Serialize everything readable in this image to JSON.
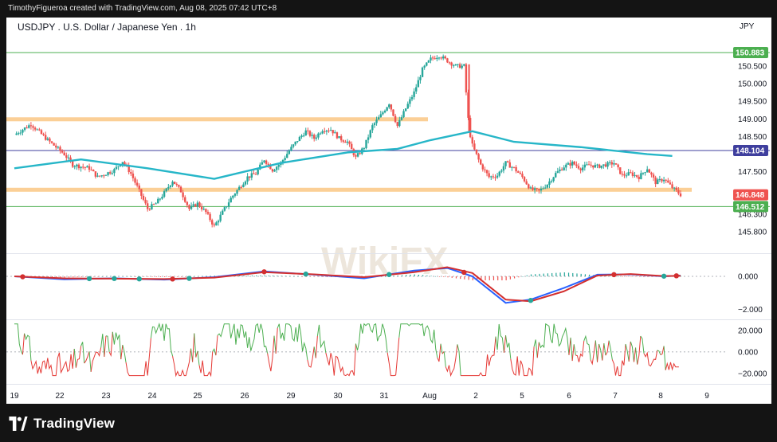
{
  "credit": "TimothyFigueroa created with TradingView.com, Aug 08, 2025 07:42 UTC+8",
  "footer": {
    "brand": "TradingView"
  },
  "watermark": "WikiFX",
  "colors": {
    "bull": "#26a69a",
    "bear": "#ef5350",
    "ma": "#26b6c8",
    "resistance_zone": "#fbcf96",
    "support_zone": "#fbcf96",
    "green_level": "#4caf50",
    "blue_level": "#3f3f9e",
    "macd_line": "#2962ff",
    "signal_line": "#d32f2f",
    "macd_up": "#26a69a",
    "macd_down": "#ef5350"
  },
  "icons": {
    "logo": "tradingview-logo-icon"
  },
  "chart_data": [
    {
      "type": "candlestick",
      "title": "USDJPY . U.S. Dollar / Japanese Yen . 1h",
      "currency": "JPY",
      "timeframe": "1h",
      "ylim": [
        145.55,
        151.2
      ],
      "y_ticks": [
        150.5,
        150.0,
        149.5,
        149.0,
        148.5,
        147.5,
        146.3,
        145.8
      ],
      "x_ticks": [
        "19",
        "22",
        "23",
        "24",
        "25",
        "26",
        "29",
        "30",
        "31",
        "Aug",
        "2",
        "5",
        "6",
        "7",
        "8",
        "9"
      ],
      "price_labels": [
        {
          "value": 150.883,
          "text": "150.883",
          "color": "#4caf50"
        },
        {
          "value": 148.104,
          "text": "148.104",
          "color": "#3f3f9e"
        },
        {
          "value": 146.848,
          "text": "146.848",
          "color": "#ef5350"
        },
        {
          "value": 146.512,
          "text": "146.512",
          "color": "#4caf50"
        }
      ],
      "levels": [
        {
          "kind": "line",
          "value": 150.883,
          "color": "#4caf50",
          "x_from": "19"
        },
        {
          "kind": "zone",
          "value": 148.99,
          "color": "#fbcf96",
          "x_from": "19",
          "x_to": "31"
        },
        {
          "kind": "line",
          "value": 148.104,
          "color": "#3f3f9e",
          "x_from": "19"
        },
        {
          "kind": "zone",
          "value": 146.99,
          "color": "#fbcf96",
          "x_from": "19"
        },
        {
          "kind": "line",
          "value": 146.512,
          "color": "#4caf50",
          "x_from": "19"
        }
      ],
      "close_path": [
        [
          0,
          148.55
        ],
        [
          2,
          148.85
        ],
        [
          4,
          148.4
        ],
        [
          6,
          148.0
        ],
        [
          7,
          147.7
        ],
        [
          9,
          147.6
        ],
        [
          10,
          147.35
        ],
        [
          12,
          147.55
        ],
        [
          13,
          147.8
        ],
        [
          14,
          147.45
        ],
        [
          15,
          146.95
        ],
        [
          16,
          146.45
        ],
        [
          17,
          146.6
        ],
        [
          18,
          146.9
        ],
        [
          19,
          147.25
        ],
        [
          20,
          146.95
        ],
        [
          21,
          146.45
        ],
        [
          22,
          146.6
        ],
        [
          23,
          146.35
        ],
        [
          24,
          145.95
        ],
        [
          25,
          146.35
        ],
        [
          26,
          146.75
        ],
        [
          27,
          147.05
        ],
        [
          28,
          147.35
        ],
        [
          29,
          147.45
        ],
        [
          30,
          147.85
        ],
        [
          31,
          147.55
        ],
        [
          32,
          147.75
        ],
        [
          33,
          148.1
        ],
        [
          34,
          148.4
        ],
        [
          35,
          148.65
        ],
        [
          36,
          148.45
        ],
        [
          37,
          148.7
        ],
        [
          38,
          148.7
        ],
        [
          39,
          148.45
        ],
        [
          40,
          148.35
        ],
        [
          41,
          147.9
        ],
        [
          42,
          148.2
        ],
        [
          43,
          148.8
        ],
        [
          44,
          149.1
        ],
        [
          45,
          149.45
        ],
        [
          46,
          148.8
        ],
        [
          47,
          149.3
        ],
        [
          48,
          149.75
        ],
        [
          49,
          150.4
        ],
        [
          50,
          150.7
        ],
        [
          51,
          150.8
        ],
        [
          52,
          150.65
        ],
        [
          53,
          150.5
        ],
        [
          54,
          150.5
        ],
        [
          54.6,
          148.7
        ],
        [
          55,
          148.25
        ],
        [
          56,
          147.7
        ],
        [
          57,
          147.35
        ],
        [
          58,
          147.4
        ],
        [
          59,
          147.75
        ],
        [
          60,
          147.6
        ],
        [
          61,
          147.35
        ],
        [
          62,
          147.0
        ],
        [
          63,
          146.95
        ],
        [
          64,
          147.15
        ],
        [
          65,
          147.45
        ],
        [
          66,
          147.65
        ],
        [
          67,
          147.75
        ],
        [
          68,
          147.6
        ],
        [
          69,
          147.7
        ],
        [
          70,
          147.65
        ],
        [
          71,
          147.7
        ],
        [
          72,
          147.75
        ],
        [
          73,
          147.4
        ],
        [
          74,
          147.45
        ],
        [
          75,
          147.35
        ],
        [
          76,
          147.6
        ],
        [
          77,
          147.2
        ],
        [
          78,
          147.3
        ],
        [
          79,
          147.05
        ],
        [
          80,
          146.85
        ]
      ],
      "moving_average": [
        [
          0,
          147.6
        ],
        [
          8,
          147.85
        ],
        [
          16,
          147.6
        ],
        [
          24,
          147.3
        ],
        [
          32,
          147.75
        ],
        [
          40,
          148.05
        ],
        [
          46,
          148.15
        ],
        [
          50,
          148.4
        ],
        [
          55,
          148.65
        ],
        [
          60,
          148.35
        ],
        [
          68,
          148.2
        ],
        [
          76,
          148.0
        ],
        [
          79,
          147.95
        ]
      ],
      "last_price": 146.848
    },
    {
      "type": "line",
      "indicator": "MACD",
      "ylim": [
        -2.4,
        1.2
      ],
      "y_ticks": [
        0.0,
        -2.0
      ],
      "series": [
        {
          "values": [
            [
              0,
              0.0
            ],
            [
              6,
              -0.18
            ],
            [
              12,
              -0.12
            ],
            [
              18,
              -0.2
            ],
            [
              24,
              -0.05
            ],
            [
              30,
              0.3
            ],
            [
              36,
              0.1
            ],
            [
              42,
              -0.12
            ],
            [
              48,
              0.35
            ],
            [
              52,
              0.5
            ],
            [
              55,
              0.0
            ],
            [
              59,
              -1.6
            ],
            [
              62,
              -1.4
            ],
            [
              66,
              -0.7
            ],
            [
              70,
              0.1
            ],
            [
              74,
              0.12
            ],
            [
              78,
              0.0
            ],
            [
              80,
              0.05
            ]
          ],
          "color": "#2962ff"
        },
        {
          "values": [
            [
              0,
              0.0
            ],
            [
              6,
              -0.12
            ],
            [
              12,
              -0.14
            ],
            [
              18,
              -0.16
            ],
            [
              24,
              -0.08
            ],
            [
              30,
              0.25
            ],
            [
              36,
              0.12
            ],
            [
              42,
              -0.05
            ],
            [
              48,
              0.25
            ],
            [
              52,
              0.55
            ],
            [
              55,
              0.2
            ],
            [
              59,
              -1.4
            ],
            [
              62,
              -1.5
            ],
            [
              66,
              -0.9
            ],
            [
              70,
              0.05
            ],
            [
              74,
              0.14
            ],
            [
              78,
              0.02
            ],
            [
              80,
              0.03
            ]
          ],
          "color": "#d32f2f"
        }
      ]
    },
    {
      "type": "line",
      "indicator": "Oscillator",
      "ylim": [
        -26,
        28
      ],
      "y_ticks": [
        20.0,
        0.0,
        -20.0
      ],
      "last_value": -14
    }
  ]
}
